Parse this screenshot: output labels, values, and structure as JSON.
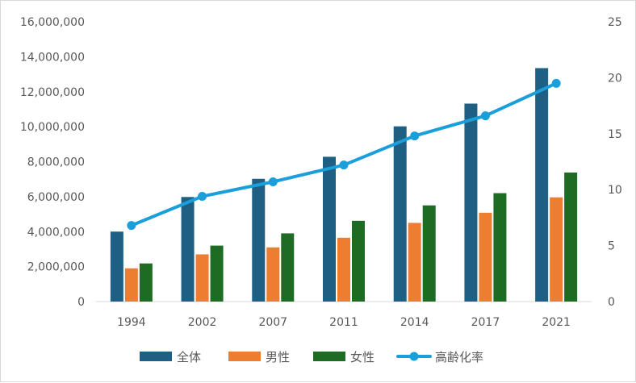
{
  "chart_data": {
    "type": "bar",
    "categories": [
      "1994",
      "2002",
      "2007",
      "2011",
      "2014",
      "2017",
      "2021"
    ],
    "series": [
      {
        "name": "全体",
        "type": "bar",
        "axis": "left",
        "color": "#1f5f84",
        "values": [
          4000000,
          5980000,
          7020000,
          8280000,
          10020000,
          11320000,
          13350000
        ]
      },
      {
        "name": "男性",
        "type": "bar",
        "axis": "left",
        "color": "#ed7d31",
        "values": [
          1900000,
          2700000,
          3100000,
          3650000,
          4500000,
          5080000,
          5960000
        ]
      },
      {
        "name": "女性",
        "type": "bar",
        "axis": "left",
        "color": "#1e6b23",
        "values": [
          2180000,
          3200000,
          3900000,
          4620000,
          5500000,
          6200000,
          7380000
        ]
      },
      {
        "name": "高齢化率",
        "type": "line",
        "axis": "right",
        "color": "#1a9fdb",
        "values": [
          6.8,
          9.4,
          10.7,
          12.2,
          14.8,
          16.6,
          19.5
        ]
      }
    ],
    "y_left": {
      "lim": [
        0,
        16000000
      ],
      "ticks": [
        0,
        2000000,
        4000000,
        6000000,
        8000000,
        10000000,
        12000000,
        14000000,
        16000000
      ],
      "tick_labels": [
        "0",
        "2,000,000",
        "4,000,000",
        "6,000,000",
        "8,000,000",
        "10,000,000",
        "12,000,000",
        "14,000,000",
        "16,000,000"
      ]
    },
    "y_right": {
      "lim": [
        0,
        25
      ],
      "ticks": [
        0,
        5,
        10,
        15,
        20,
        25
      ],
      "tick_labels": [
        "0",
        "5",
        "10",
        "15",
        "20",
        "25"
      ]
    },
    "gridlines": false,
    "legend_position": "bottom",
    "title": "",
    "xlabel": "",
    "ylabel": ""
  }
}
